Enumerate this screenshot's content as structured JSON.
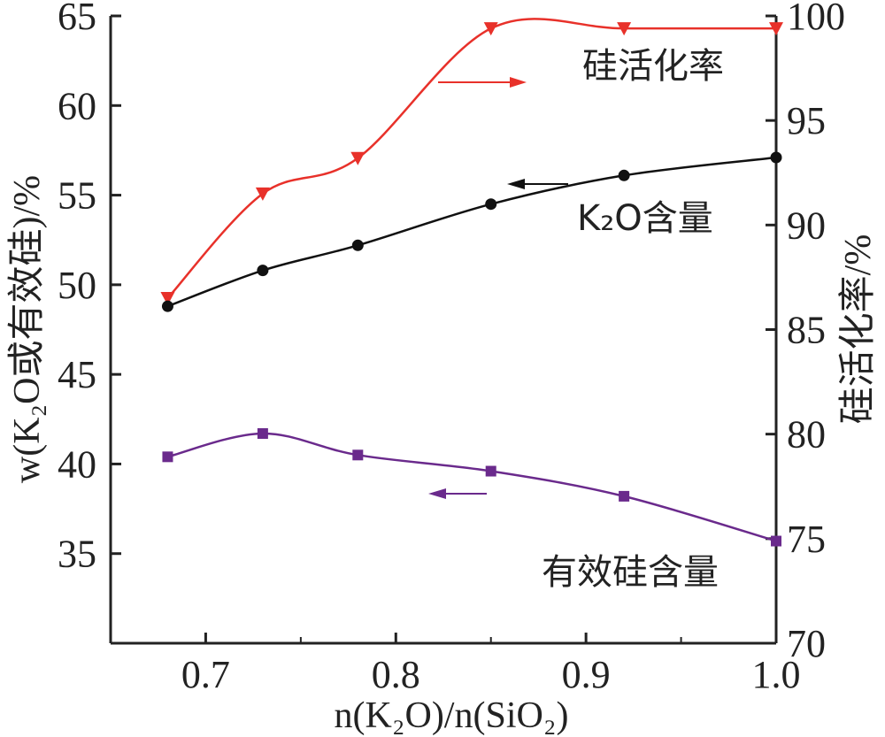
{
  "chart_data": {
    "type": "line",
    "xlabel": "n(K₂O)/n(SiO₂)",
    "ylabel_left": "w(K₂O或有效硅)/%",
    "ylabel_right": "硅活化率/%",
    "xlim": [
      0.65,
      1.0
    ],
    "ylim_left": [
      30,
      65
    ],
    "ylim_right": [
      70,
      100
    ],
    "x_ticks": [
      "0.7",
      "0.8",
      "0.9",
      "1.0"
    ],
    "y_ticks_left": [
      "35",
      "40",
      "45",
      "50",
      "55",
      "60",
      "65"
    ],
    "y_ticks_right": [
      "70",
      "75",
      "80",
      "85",
      "90",
      "95",
      "100"
    ],
    "grid": false,
    "series": [
      {
        "name": "硅活化率",
        "axis": "right",
        "color": "#e8312a",
        "marker": "triangle-down",
        "x": [
          0.68,
          0.73,
          0.78,
          0.85,
          0.92,
          1.0
        ],
        "y": [
          86.5,
          91.5,
          93.2,
          99.4,
          99.4,
          99.4
        ]
      },
      {
        "name": "K₂O含量",
        "axis": "left",
        "color": "#111111",
        "marker": "circle",
        "x": [
          0.68,
          0.73,
          0.78,
          0.85,
          0.92,
          1.0
        ],
        "y": [
          48.8,
          50.8,
          52.2,
          54.5,
          56.1,
          57.1
        ]
      },
      {
        "name": "有效硅含量",
        "axis": "left",
        "color": "#6a2a8c",
        "marker": "square",
        "x": [
          0.68,
          0.73,
          0.78,
          0.85,
          0.92,
          1.0
        ],
        "y": [
          40.4,
          41.7,
          40.5,
          39.6,
          38.2,
          35.7
        ]
      }
    ]
  }
}
